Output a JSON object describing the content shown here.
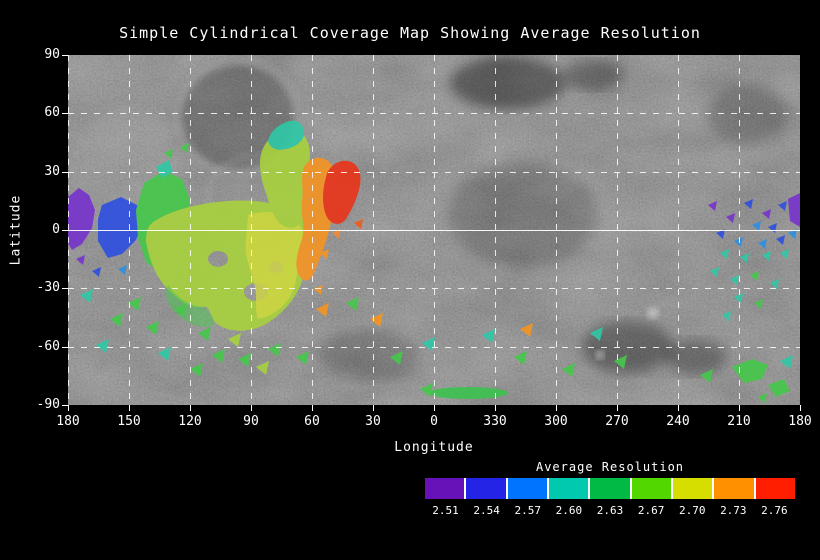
{
  "chart_data": {
    "type": "heatmap",
    "title": "Simple Cylindrical Coverage Map Showing Average Resolution",
    "xlabel": "Longitude",
    "ylabel": "Latitude",
    "x_tick_labels": [
      "180",
      "150",
      "120",
      "90",
      "60",
      "30",
      "0",
      "330",
      "300",
      "270",
      "240",
      "210",
      "180"
    ],
    "y_tick_labels": [
      "90",
      "60",
      "30",
      "0",
      "-30",
      "-60",
      "-90"
    ],
    "lat_range": [
      -90,
      90
    ],
    "lon_axis": "wraps 180 -> 0 -> 180 (decreasing left to right)",
    "grid": {
      "style": "dashed white, 30 degree spacing",
      "equator_line": "solid white"
    },
    "basemap": "grayscale planetary surface mosaic (simple cylindrical projection)",
    "colorbar": {
      "label": "Average Resolution",
      "tick_labels": [
        "2.51",
        "2.54",
        "2.57",
        "2.60",
        "2.63",
        "2.67",
        "2.70",
        "2.73",
        "2.76"
      ],
      "segment_colors": [
        "#6612b8",
        "#2424e6",
        "#0073ff",
        "#00c9b0",
        "#00ba45",
        "#52d800",
        "#d6de00",
        "#ff9000",
        "#ff1e00"
      ]
    },
    "coverage_regions": [
      {
        "label": "west edge patch",
        "lon_center": 178,
        "lat_center": 5,
        "approx_resolution": 2.52,
        "color_band": "purple"
      },
      {
        "label": "patch near lon 155",
        "lon_center": 156,
        "lat_center": -3,
        "approx_resolution": 2.56,
        "color_band": "blue"
      },
      {
        "label": "patch near lon 140",
        "lon_center": 140,
        "lat_center": 2,
        "approx_resolution": 2.61,
        "color_band": "green"
      },
      {
        "label": "large central lobe",
        "lon_center": 105,
        "lat_center": -18,
        "approx_resolution": 2.65,
        "color_band": "yellow-green"
      },
      {
        "label": "northern arm up to lat 45",
        "lon_center": 70,
        "lat_center": 28,
        "approx_resolution": 2.64,
        "color_band": "green-yellow"
      },
      {
        "label": "arm eastern flank",
        "lon_center": 55,
        "lat_center": 8,
        "approx_resolution": 2.71,
        "color_band": "orange"
      },
      {
        "label": "eastern lobe",
        "lon_center": 44,
        "lat_center": 18,
        "approx_resolution": 2.75,
        "color_band": "red"
      },
      {
        "label": "scattered southern fragments",
        "lon_center": 95,
        "lat_center": -50,
        "approx_resolution": 2.61,
        "color_band": "green/teal"
      },
      {
        "label": "south polar streak",
        "lon_center": 358,
        "lat_center": -86,
        "approx_resolution": 2.6,
        "color_band": "green"
      },
      {
        "label": "eastern speckled field",
        "lon_center": 208,
        "lat_center": 2,
        "approx_resolution": 2.54,
        "color_band": "purple/blue/teal"
      },
      {
        "label": "southeast patches",
        "lon_center": 192,
        "lat_center": -72,
        "approx_resolution": 2.61,
        "color_band": "green"
      }
    ]
  }
}
